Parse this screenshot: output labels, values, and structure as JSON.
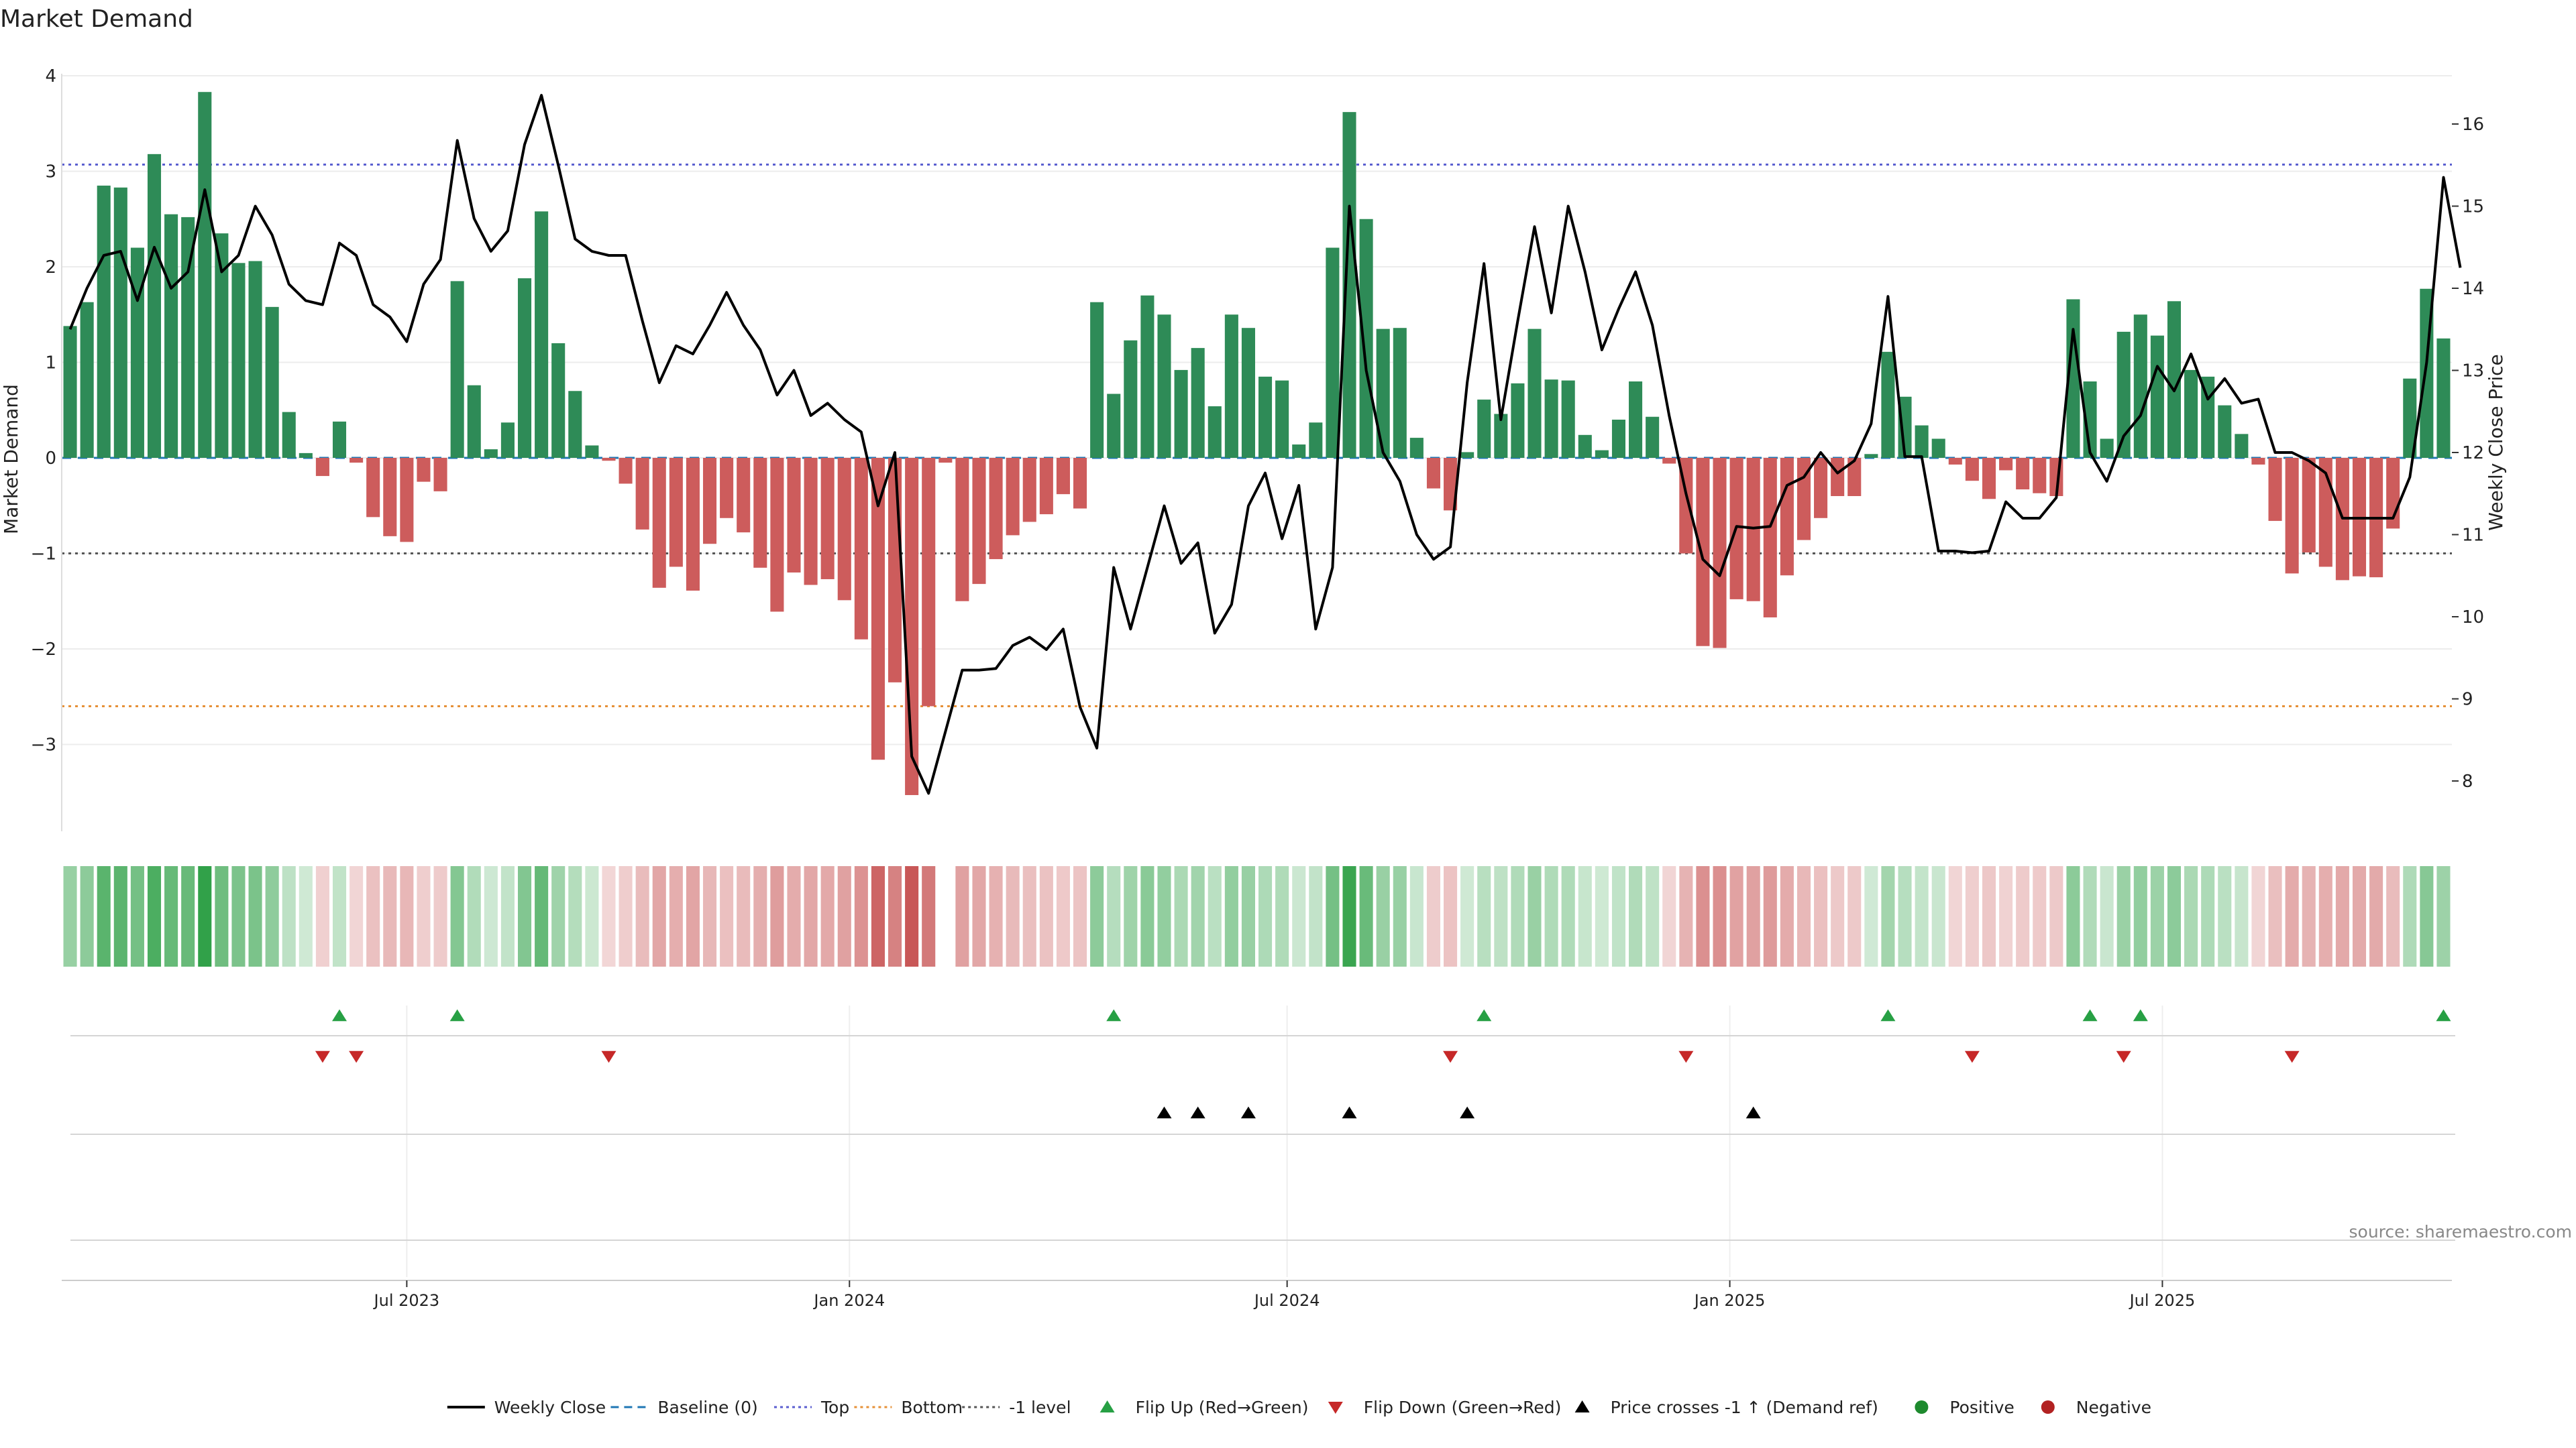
{
  "chart_data": {
    "type": "bar",
    "title": "Market Demand",
    "ylabel": "Market Demand",
    "y2label": "Weekly Close Price",
    "ylim": [
      -3.95,
      4.0
    ],
    "yticks": [
      -3,
      -2,
      -1,
      0,
      1,
      2,
      3,
      4
    ],
    "y2lim": [
      7.5,
      16.8
    ],
    "y2ticks": [
      8,
      9,
      10,
      11,
      12,
      13,
      14,
      15,
      16
    ],
    "xtick_labels": [
      "Jul 2023",
      "Jan 2024",
      "Jul 2024",
      "Jan 2025",
      "Jul 2025"
    ],
    "xtick_index": [
      20,
      46.3,
      72.3,
      98.6,
      124.3
    ],
    "reference_lines": {
      "top": 3.07,
      "bottom": -2.6,
      "minus_one": -1.0,
      "baseline": 0
    },
    "demand": [
      1.38,
      1.63,
      2.85,
      2.83,
      2.2,
      3.18,
      2.55,
      2.52,
      3.83,
      2.35,
      2.04,
      2.06,
      1.58,
      0.48,
      0.05,
      -0.19,
      0.38,
      -0.05,
      -0.62,
      -0.82,
      -0.88,
      -0.25,
      -0.35,
      1.85,
      0.76,
      0.09,
      0.37,
      1.88,
      2.58,
      1.2,
      0.7,
      0.13,
      -0.03,
      -0.27,
      -0.75,
      -1.36,
      -1.14,
      -1.39,
      -0.9,
      -0.63,
      -0.78,
      -1.15,
      -1.61,
      -1.2,
      -1.33,
      -1.27,
      -1.49,
      -1.9,
      -3.16,
      -2.35,
      -3.53,
      -2.6,
      -0.05,
      -1.5,
      -1.32,
      -1.06,
      -0.81,
      -0.67,
      -0.59,
      -0.38,
      -0.53,
      1.63,
      0.67,
      1.23,
      1.7,
      1.5,
      0.92,
      1.15,
      0.54,
      1.5,
      1.36,
      0.85,
      0.81,
      0.14,
      0.37,
      2.2,
      3.62,
      2.5,
      1.35,
      1.36,
      0.21,
      -0.32,
      -0.55,
      0.06,
      0.61,
      0.46,
      0.78,
      1.35,
      0.82,
      0.81,
      0.24,
      0.08,
      0.4,
      0.8,
      0.43,
      -0.06,
      -1.0,
      -1.97,
      -1.99,
      -1.48,
      -1.5,
      -1.67,
      -1.23,
      -0.86,
      -0.63,
      -0.4,
      -0.4,
      0.04,
      1.11,
      0.64,
      0.34,
      0.2,
      -0.07,
      -0.24,
      -0.43,
      -0.13,
      -0.33,
      -0.37,
      -0.4,
      1.66,
      0.8,
      0.2,
      1.32,
      1.5,
      1.28,
      1.64,
      0.92,
      0.85,
      0.55,
      0.25,
      -0.07,
      -0.66,
      -1.21,
      -0.99,
      -1.14,
      -1.28,
      -1.24,
      -1.25,
      -0.74,
      0.83,
      1.77,
      1.25
    ],
    "close": [
      13.5,
      14.0,
      14.4,
      14.45,
      13.85,
      14.5,
      14.0,
      14.2,
      15.2,
      14.2,
      14.4,
      15.0,
      14.65,
      14.05,
      13.85,
      13.8,
      14.55,
      14.4,
      13.8,
      13.65,
      13.35,
      14.05,
      14.35,
      15.8,
      14.85,
      14.45,
      14.7,
      15.75,
      16.35,
      15.5,
      14.6,
      14.45,
      14.4,
      14.4,
      13.6,
      12.85,
      13.3,
      13.2,
      13.55,
      13.95,
      13.55,
      13.25,
      12.7,
      13.0,
      12.45,
      12.6,
      12.4,
      12.25,
      11.35,
      12.0,
      8.3,
      7.85,
      8.6,
      9.35,
      9.35,
      9.37,
      9.65,
      9.75,
      9.6,
      9.85,
      8.9,
      8.4,
      10.6,
      9.85,
      10.6,
      11.35,
      10.65,
      10.9,
      9.8,
      10.15,
      11.35,
      11.75,
      10.95,
      11.6,
      9.85,
      10.6,
      15.0,
      13.0,
      12.0,
      11.65,
      11.0,
      10.7,
      10.85,
      12.85,
      14.3,
      12.4,
      13.6,
      14.75,
      13.7,
      15.0,
      14.2,
      13.25,
      13.75,
      14.2,
      13.55,
      12.45,
      11.5,
      10.7,
      10.5,
      11.1,
      11.08,
      11.1,
      11.6,
      11.7,
      12.0,
      11.75,
      11.9,
      12.35,
      13.9,
      11.95,
      11.95,
      10.8,
      10.8,
      10.78,
      10.8,
      11.4,
      11.2,
      11.2,
      11.45,
      13.5,
      12.0,
      11.65,
      12.2,
      12.45,
      13.05,
      12.75,
      13.2,
      12.65,
      12.9,
      12.6,
      12.65,
      12.0,
      12.0,
      11.9,
      11.75,
      11.2,
      11.2,
      11.2,
      11.2,
      11.7,
      13.1,
      15.35,
      14.25
    ],
    "heat_gap_index": [
      52
    ],
    "flip_up_index": [
      16,
      23,
      62,
      84,
      108,
      120,
      123,
      141
    ],
    "flip_down_index": [
      15,
      17,
      32,
      82,
      96,
      113,
      122,
      132
    ],
    "price_cross_index": [
      65,
      67,
      70,
      76,
      83,
      100
    ],
    "legend": [
      {
        "label": "Weekly Close",
        "kind": "line",
        "color": "#000000"
      },
      {
        "label": "Baseline (0)",
        "kind": "dash",
        "color": "#1f77b4"
      },
      {
        "label": "Top",
        "kind": "dot",
        "color": "#5b5fd0"
      },
      {
        "label": "Bottom",
        "kind": "dot",
        "color": "#e69138"
      },
      {
        "label": "-1 level",
        "kind": "dot",
        "color": "#555555"
      },
      {
        "label": "Flip Up (Red→Green)",
        "kind": "tri-up",
        "color": "#27a044"
      },
      {
        "label": "Flip Down (Green→Red)",
        "kind": "tri-down",
        "color": "#c62828"
      },
      {
        "label": "Price crosses -1 ↑ (Demand ref)",
        "kind": "tri-up",
        "color": "#000000"
      },
      {
        "label": "Positive",
        "kind": "dot-circle",
        "color": "#1e8a2e"
      },
      {
        "label": "Negative",
        "kind": "dot-circle",
        "color": "#b22222"
      }
    ],
    "source": "source: sharemaestro.com",
    "colors": {
      "positive": "#2e8b57",
      "negative": "#cd5c5c",
      "close": "#000000"
    }
  }
}
